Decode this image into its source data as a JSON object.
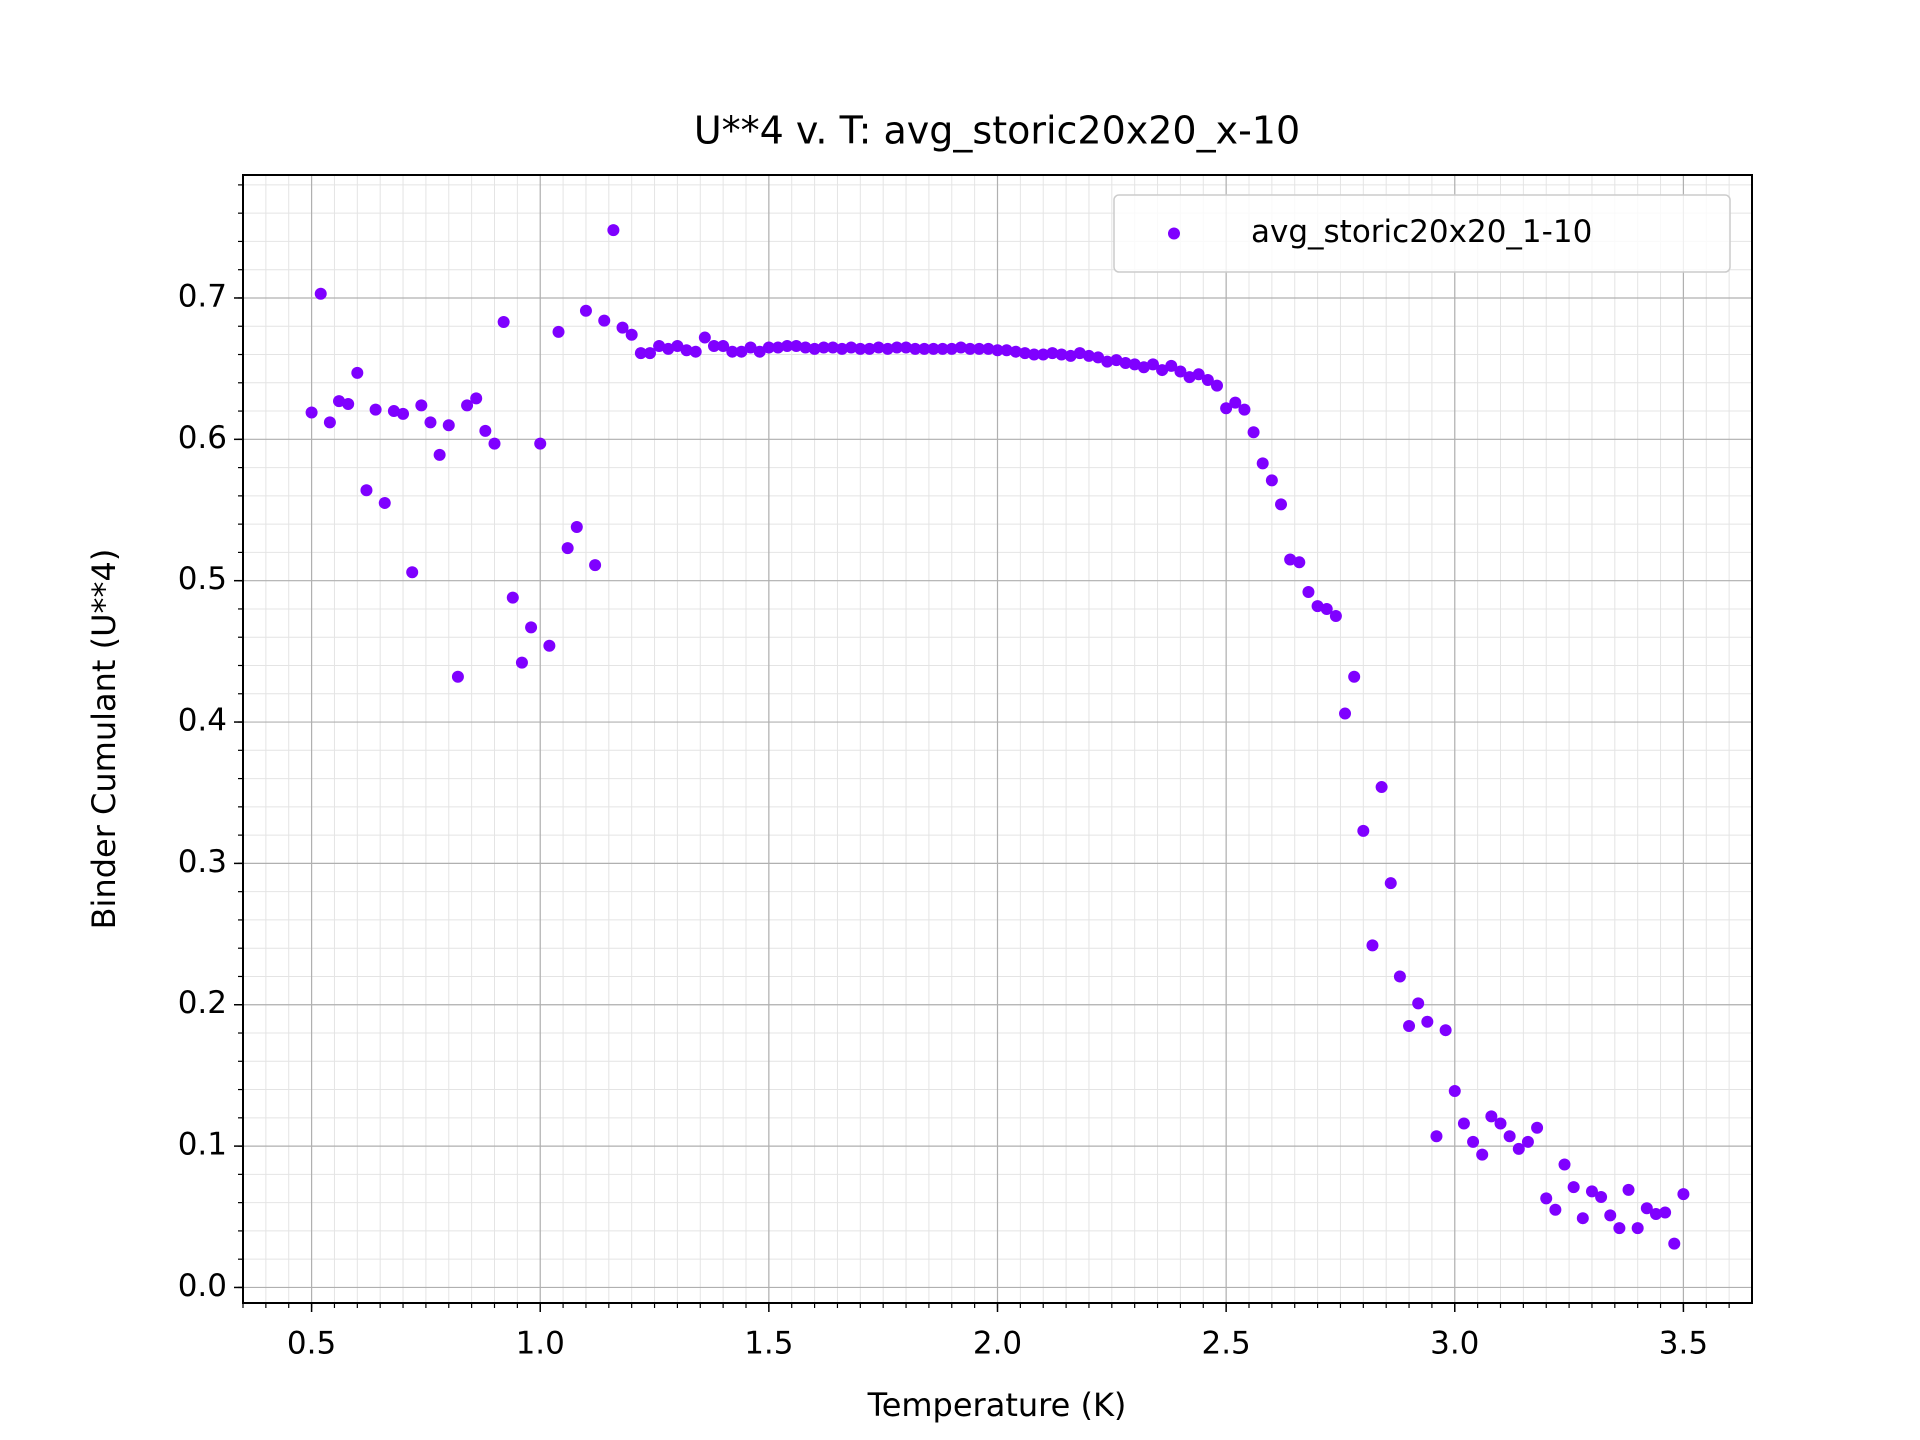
{
  "chart_data": {
    "type": "scatter",
    "title": "U**4 v. T: avg_storic20x20_x-10",
    "x_label": "Temperature (K)",
    "y_label": "Binder Cumulant (U**4)",
    "xlim": [
      0.35,
      3.65
    ],
    "ylim": [
      -0.011,
      0.787
    ],
    "xticks": [
      0.5,
      {
        "value": 1,
        "label": "1.0"
      },
      1.5,
      {
        "value": 2,
        "label": "2.0"
      },
      2.5,
      {
        "value": 3,
        "label": "3.0"
      },
      3.5
    ],
    "yticks": [
      {
        "value": 0,
        "label": "0.0"
      },
      0.1,
      0.2,
      0.3,
      0.4,
      0.5,
      0.6,
      0.7
    ],
    "grid": true,
    "minor_xstep": 0.05,
    "minor_ystep": 0.02,
    "legend_position": "upper right",
    "series": [
      {
        "name": "avg_storic20x20_1-10",
        "color": "#7f00ff",
        "x": [
          0.5,
          0.52,
          0.54,
          0.56,
          0.58,
          0.6,
          0.62,
          0.64,
          0.66,
          0.68,
          0.7,
          0.72,
          0.74,
          0.76,
          0.78,
          0.8,
          0.82,
          0.84,
          0.86,
          0.88,
          0.9,
          0.92,
          0.94,
          0.96,
          0.98,
          1,
          1.02,
          1.04,
          1.06,
          1.08,
          1.1,
          1.12,
          1.14,
          1.16,
          1.18,
          1.2,
          1.22,
          1.24,
          1.26,
          1.28,
          1.3,
          1.32,
          1.34,
          1.36,
          1.38,
          1.4,
          1.42,
          1.44,
          1.46,
          1.48,
          1.5,
          1.52,
          1.54,
          1.56,
          1.58,
          1.6,
          1.62,
          1.64,
          1.66,
          1.68,
          1.7,
          1.72,
          1.74,
          1.76,
          1.78,
          1.8,
          1.82,
          1.84,
          1.86,
          1.88,
          1.9,
          1.92,
          1.94,
          1.96,
          1.98,
          2,
          2.02,
          2.04,
          2.06,
          2.08,
          2.1,
          2.12,
          2.14,
          2.16,
          2.18,
          2.2,
          2.22,
          2.24,
          2.26,
          2.28,
          2.3,
          2.32,
          2.34,
          2.36,
          2.38,
          2.4,
          2.42,
          2.44,
          2.46,
          2.48,
          2.5,
          2.52,
          2.54,
          2.56,
          2.58,
          2.6,
          2.62,
          2.64,
          2.66,
          2.68,
          2.7,
          2.72,
          2.74,
          2.76,
          2.78,
          2.8,
          2.82,
          2.84,
          2.86,
          2.88,
          2.9,
          2.92,
          2.94,
          2.96,
          2.98,
          3,
          3.02,
          3.04,
          3.06,
          3.08,
          3.1,
          3.12,
          3.14,
          3.16,
          3.18,
          3.2,
          3.22,
          3.24,
          3.26,
          3.28,
          3.3,
          3.32,
          3.34,
          3.36,
          3.38,
          3.4,
          3.42,
          3.44,
          3.46,
          3.48,
          3.5
        ],
        "values": [
          0.619,
          0.703,
          0.612,
          0.627,
          0.625,
          0.647,
          0.564,
          0.621,
          0.555,
          0.62,
          0.618,
          0.506,
          0.624,
          0.612,
          0.589,
          0.61,
          0.432,
          0.624,
          0.629,
          0.606,
          0.597,
          0.683,
          0.488,
          0.442,
          0.467,
          0.597,
          0.454,
          0.676,
          0.523,
          0.538,
          0.691,
          0.511,
          0.684,
          0.748,
          0.679,
          0.674,
          0.661,
          0.661,
          0.666,
          0.664,
          0.666,
          0.663,
          0.662,
          0.672,
          0.666,
          0.666,
          0.662,
          0.662,
          0.665,
          0.662,
          0.665,
          0.665,
          0.666,
          0.666,
          0.665,
          0.664,
          0.665,
          0.665,
          0.664,
          0.665,
          0.664,
          0.664,
          0.665,
          0.664,
          0.665,
          0.665,
          0.664,
          0.664,
          0.664,
          0.664,
          0.664,
          0.665,
          0.664,
          0.664,
          0.664,
          0.663,
          0.663,
          0.662,
          0.661,
          0.66,
          0.66,
          0.661,
          0.66,
          0.659,
          0.661,
          0.659,
          0.658,
          0.655,
          0.656,
          0.654,
          0.653,
          0.651,
          0.653,
          0.649,
          0.652,
          0.648,
          0.644,
          0.646,
          0.642,
          0.638,
          0.622,
          0.626,
          0.621,
          0.605,
          0.583,
          0.571,
          0.554,
          0.515,
          0.513,
          0.492,
          0.482,
          0.48,
          0.475,
          0.406,
          0.432,
          0.323,
          0.242,
          0.354,
          0.286,
          0.22,
          0.185,
          0.201,
          0.188,
          0.107,
          0.182,
          0.139,
          0.116,
          0.103,
          0.094,
          0.121,
          0.116,
          0.107,
          0.098,
          0.103,
          0.113,
          0.063,
          0.055,
          0.087,
          0.071,
          0.049,
          0.068,
          0.064,
          0.051,
          0.042,
          0.069,
          0.042,
          0.056,
          0.052,
          0.053,
          0.031,
          0.066
        ]
      }
    ]
  }
}
